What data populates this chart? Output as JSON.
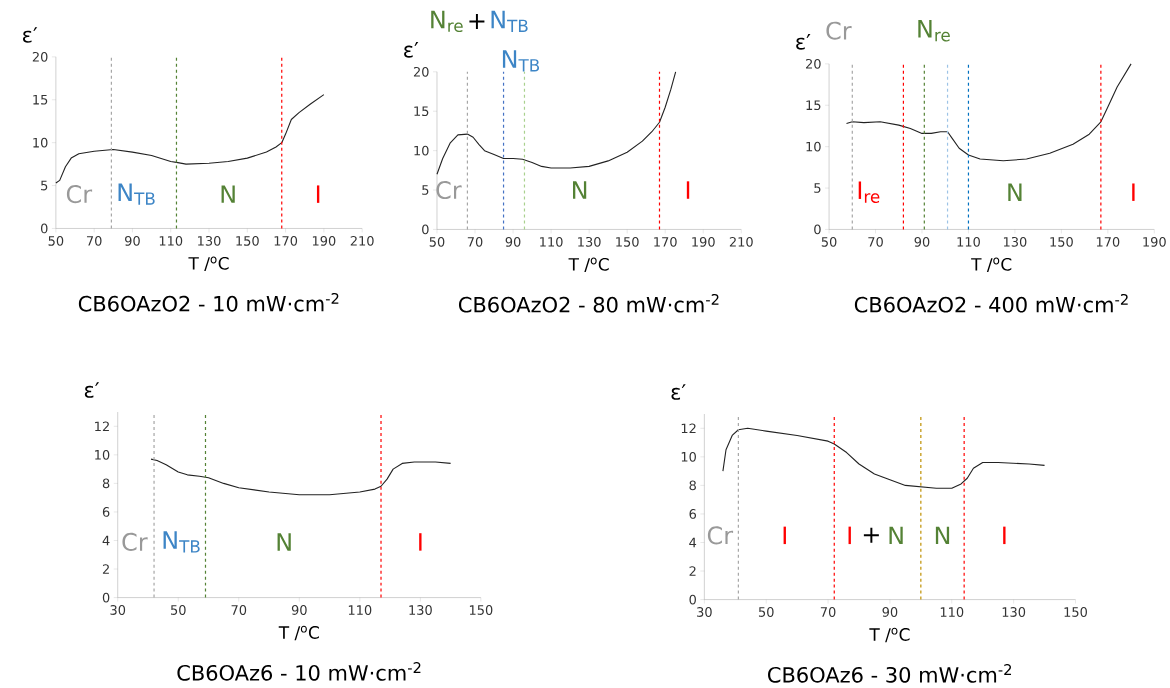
{
  "chart_data": [
    {
      "type": "line",
      "title": "CB6OAzO2 - 10 mW·cm$^{-2}$",
      "xlabel": "T /$^{o}$C",
      "ylabel": "ε′",
      "xlim": [
        50,
        210
      ],
      "xticks": [
        50,
        70,
        90,
        110,
        130,
        150,
        170,
        190,
        210
      ],
      "ylim": [
        0,
        20
      ],
      "yticks": [
        0,
        5,
        10,
        15,
        20
      ],
      "series": [
        {
          "color": "#222222",
          "x": [
            50,
            52,
            55,
            58,
            62,
            70,
            80,
            90,
            100,
            110,
            113,
            118,
            130,
            140,
            150,
            160,
            165,
            168,
            170,
            173,
            177,
            183,
            190
          ],
          "values": [
            5.3,
            5.6,
            7.2,
            8.2,
            8.7,
            9.0,
            9.2,
            8.9,
            8.5,
            7.8,
            7.7,
            7.5,
            7.6,
            7.8,
            8.2,
            8.9,
            9.5,
            10.0,
            11.0,
            12.7,
            13.5,
            14.5,
            15.6
          ]
        }
      ],
      "ref_lines": [
        {
          "axis": "x",
          "value": 79,
          "color": "#a6a6a6",
          "line_style": "dashed"
        },
        {
          "axis": "x",
          "value": 113,
          "color": "#548235",
          "line_style": "dashed"
        },
        {
          "axis": "x",
          "value": 168,
          "color": "#ff0000",
          "line_style": "dashed"
        }
      ],
      "annotations": [
        "Cr",
        "N$_{TB}$",
        "N",
        "I"
      ]
    },
    {
      "type": "line",
      "title": "CB6OAzO2 - 80 mW·cm$^{-2}$",
      "xlabel": "T /$^{o}$C",
      "ylabel": "ε′",
      "xlim": [
        50,
        210
      ],
      "xticks": [
        50,
        70,
        90,
        110,
        130,
        150,
        170,
        190,
        210
      ],
      "ylim": [
        0,
        20
      ],
      "yticks": [
        0,
        5,
        10,
        15,
        20
      ],
      "series": [
        {
          "color": "#222222",
          "x": [
            50,
            53,
            57,
            61,
            66,
            69,
            72,
            75,
            80,
            85,
            90,
            95,
            100,
            105,
            110,
            120,
            130,
            140,
            150,
            158,
            163,
            167,
            170,
            173,
            175.5
          ],
          "values": [
            7.0,
            9.0,
            11.0,
            12.0,
            12.1,
            11.7,
            10.8,
            10.0,
            9.5,
            9.0,
            9.0,
            8.9,
            8.5,
            8.0,
            7.8,
            7.8,
            8.0,
            8.7,
            9.8,
            11.2,
            12.4,
            13.6,
            15.5,
            17.8,
            20
          ]
        }
      ],
      "ref_lines": [
        {
          "axis": "x",
          "value": 66,
          "color": "#a6a6a6",
          "line_style": "dashed"
        },
        {
          "axis": "x",
          "value": 85,
          "color": "#4472c4",
          "line_style": "dashed"
        },
        {
          "axis": "x",
          "value": 96,
          "color": "#a9d18e",
          "line_style": "dashed"
        },
        {
          "axis": "x",
          "value": 167,
          "color": "#ff0000",
          "line_style": "dashed"
        }
      ],
      "annotations": [
        "Cr",
        "N",
        "I",
        "N$_{re}$",
        "+",
        "N$_{TB}$",
        "N$_{TB}$"
      ]
    },
    {
      "type": "line",
      "title": "CB6OAzO2 - 400 mW·cm$^{-2}$",
      "xlabel": "T /$^{o}$C",
      "ylabel": "ε′",
      "xlim": [
        50,
        190
      ],
      "xticks": [
        50,
        70,
        90,
        110,
        130,
        150,
        170,
        190
      ],
      "ylim": [
        0,
        20
      ],
      "yticks": [
        0,
        5,
        10,
        15,
        20
      ],
      "series": [
        {
          "color": "#222222",
          "x": [
            57.5,
            60,
            65,
            72,
            80,
            85,
            90,
            94,
            98,
            101,
            103,
            106,
            110,
            115,
            125,
            135,
            145,
            155,
            162,
            167,
            170,
            174,
            180
          ],
          "values": [
            12.8,
            13.0,
            12.9,
            13.0,
            12.6,
            12.2,
            11.6,
            11.6,
            11.8,
            11.8,
            11.0,
            9.8,
            9.0,
            8.5,
            8.3,
            8.5,
            9.2,
            10.3,
            11.5,
            13.0,
            14.8,
            17.2,
            20
          ]
        }
      ],
      "ref_lines": [
        {
          "axis": "x",
          "value": 60,
          "color": "#a6a6a6",
          "line_style": "dashed"
        },
        {
          "axis": "x",
          "value": 82,
          "color": "#ff0000",
          "line_style": "dashed"
        },
        {
          "axis": "x",
          "value": 91,
          "color": "#548235",
          "line_style": "dashed"
        },
        {
          "axis": "x",
          "value": 101,
          "color": "#9dc3e6",
          "line_style": "dashed"
        },
        {
          "axis": "x",
          "value": 110,
          "color": "#0070c0",
          "line_style": "dashed"
        },
        {
          "axis": "x",
          "value": 167,
          "color": "#ff0000",
          "line_style": "dashed"
        }
      ],
      "annotations": [
        "I$_{re}$",
        "N",
        "I",
        "Cr",
        "N$_{re}$"
      ]
    },
    {
      "type": "line",
      "title": "CB6OAz6 - 10 mW·cm$^{-2}$",
      "xlabel": "T /$^{o}$C",
      "ylabel": "ε′",
      "xlim": [
        30,
        150
      ],
      "xticks": [
        30,
        50,
        70,
        90,
        110,
        130,
        150
      ],
      "ylim": [
        0,
        13
      ],
      "yticks": [
        0,
        2,
        4,
        6,
        8,
        10,
        12
      ],
      "series": [
        {
          "color": "#222222",
          "x": [
            41,
            43,
            46,
            50,
            53,
            57,
            60,
            65,
            70,
            80,
            90,
            100,
            110,
            115,
            117,
            119,
            121,
            124,
            128,
            135,
            140
          ],
          "values": [
            9.7,
            9.6,
            9.3,
            8.8,
            8.6,
            8.5,
            8.4,
            8.0,
            7.7,
            7.4,
            7.2,
            7.2,
            7.4,
            7.6,
            7.8,
            8.3,
            9.0,
            9.4,
            9.5,
            9.5,
            9.4
          ]
        }
      ],
      "ref_lines": [
        {
          "axis": "x",
          "value": 42,
          "color": "#a6a6a6",
          "line_style": "dashed"
        },
        {
          "axis": "x",
          "value": 59,
          "color": "#548235",
          "line_style": "dashed"
        },
        {
          "axis": "x",
          "value": 117,
          "color": "#ff0000",
          "line_style": "dashed"
        }
      ],
      "annotations": [
        "Cr",
        "N$_{TB}$",
        "N",
        "I"
      ]
    },
    {
      "type": "line",
      "title": "CB6OAz6 - 30 mW·cm$^{-2}$",
      "xlabel": "T /$^{o}$C",
      "ylabel": "ε′",
      "xlim": [
        30,
        150
      ],
      "xticks": [
        30,
        50,
        70,
        90,
        110,
        130,
        150
      ],
      "ylim": [
        0,
        13
      ],
      "yticks": [
        0,
        2,
        4,
        6,
        8,
        10,
        12
      ],
      "series": [
        {
          "color": "#222222",
          "x": [
            36,
            37,
            39,
            41,
            44,
            50,
            60,
            70,
            72,
            76,
            80,
            85,
            90,
            95,
            100,
            105,
            110,
            113,
            115,
            117,
            120,
            125,
            135,
            140
          ],
          "values": [
            9.0,
            10.5,
            11.5,
            11.9,
            12.0,
            11.8,
            11.5,
            11.1,
            10.9,
            10.3,
            9.5,
            8.8,
            8.4,
            8.0,
            7.9,
            7.8,
            7.8,
            8.1,
            8.5,
            9.2,
            9.6,
            9.6,
            9.5,
            9.4
          ]
        }
      ],
      "ref_lines": [
        {
          "axis": "x",
          "value": 41,
          "color": "#a6a6a6",
          "line_style": "dashed"
        },
        {
          "axis": "x",
          "value": 72,
          "color": "#ff0000",
          "line_style": "dashed"
        },
        {
          "axis": "x",
          "value": 100,
          "color": "#bf9000",
          "line_style": "dashed"
        },
        {
          "axis": "x",
          "value": 114,
          "color": "#ff0000",
          "line_style": "dashed"
        }
      ],
      "annotations": [
        "Cr",
        "I",
        "I",
        "+",
        "N",
        "N",
        "I"
      ]
    }
  ]
}
